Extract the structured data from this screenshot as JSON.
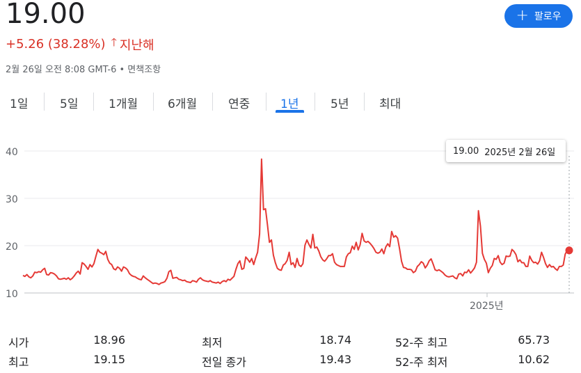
{
  "quote": {
    "price": "19.00",
    "change": "+5.26 (38.28%)",
    "change_period": "지난해",
    "timestamp": "2월 26일 오전 8:08 GMT-6 • 면책조항",
    "follow_label": "팔로우"
  },
  "colors": {
    "accent": "#1a73e8",
    "negative": "#d93025",
    "line": "#e53935"
  },
  "tabs": [
    "1일",
    "5일",
    "1개월",
    "6개월",
    "연중",
    "1년",
    "5년",
    "최대"
  ],
  "active_tab": "1년",
  "tooltip": {
    "value": "19.00",
    "date": "2025년 2월 26일"
  },
  "chart_data": {
    "type": "line",
    "y_ticks": [
      "40",
      "30",
      "20",
      "10"
    ],
    "x_tick_label": "2025년",
    "ylim": [
      10,
      40
    ],
    "x_range": [
      0,
      250
    ],
    "values": [
      13.7,
      13.5,
      13.9,
      13.4,
      13.2,
      13.6,
      14.4,
      14.3,
      14.5,
      14.4,
      14.9,
      15.2,
      13.9,
      13.8,
      14.3,
      14.2,
      14.0,
      13.6,
      13.0,
      12.9,
      13.0,
      13.1,
      12.9,
      13.2,
      12.8,
      13.1,
      13.6,
      14.2,
      14.6,
      14.0,
      16.4,
      16.1,
      15.6,
      15.0,
      16.0,
      15.5,
      16.2,
      17.8,
      19.2,
      18.6,
      18.4,
      18.1,
      18.8,
      17.1,
      16.3,
      16.0,
      15.1,
      14.9,
      15.5,
      15.2,
      14.6,
      15.5,
      15.3,
      14.9,
      14.1,
      13.7,
      13.5,
      13.4,
      13.1,
      12.9,
      12.8,
      13.6,
      13.2,
      12.9,
      12.6,
      12.3,
      12.0,
      12.1,
      12.0,
      11.8,
      12.1,
      12.2,
      12.4,
      13.1,
      14.5,
      14.8,
      13.1,
      13.2,
      13.3,
      12.9,
      12.8,
      12.6,
      12.7,
      12.4,
      12.3,
      12.2,
      12.6,
      12.5,
      12.3,
      12.9,
      13.2,
      12.8,
      12.6,
      12.5,
      12.4,
      12.6,
      12.3,
      12.2,
      12.1,
      12.3,
      12.0,
      12.4,
      12.6,
      12.4,
      12.9,
      12.7,
      13.1,
      13.5,
      15.0,
      16.2,
      16.8,
      15.0,
      15.2,
      17.6,
      17.1,
      16.5,
      17.3,
      16.0,
      17.4,
      18.6,
      22.5,
      38.3,
      27.6,
      27.8,
      24.4,
      20.7,
      21.2,
      18.0,
      16.4,
      15.2,
      14.9,
      14.8,
      15.9,
      16.2,
      16.9,
      18.6,
      16.0,
      16.4,
      15.4,
      17.3,
      15.9,
      15.6,
      16.2,
      20.1,
      21.2,
      20.3,
      19.5,
      22.4,
      19.5,
      19.7,
      18.9,
      17.7,
      17.0,
      16.7,
      17.2,
      17.9,
      17.9,
      18.3,
      16.5,
      16.0,
      15.8,
      15.6,
      15.6,
      15.6,
      17.6,
      18.3,
      18.5,
      19.9,
      19.2,
      20.7,
      19.1,
      20.2,
      22.6,
      21.0,
      20.7,
      20.9,
      20.5,
      20.0,
      19.4,
      18.6,
      18.4,
      18.6,
      19.3,
      18.3,
      19.7,
      20.4,
      19.8,
      23.0,
      21.8,
      22.1,
      21.6,
      19.3,
      16.7,
      15.4,
      15.3,
      15.0,
      15.0,
      14.9,
      14.3,
      14.6,
      15.6,
      16.0,
      16.6,
      16.3,
      15.3,
      15.9,
      16.8,
      17.2,
      16.1,
      14.9,
      14.7,
      14.9,
      14.6,
      14.3,
      13.8,
      13.5,
      13.4,
      13.5,
      13.6,
      13.2,
      13.0,
      14.0,
      14.1,
      13.6,
      14.4,
      14.3,
      14.9,
      14.2,
      14.7,
      15.3,
      16.5,
      27.4,
      24.1,
      18.4,
      17.1,
      16.3,
      14.3,
      15.2,
      15.8,
      17.3,
      17.1,
      17.9,
      16.5,
      16.0,
      16.3,
      17.8,
      17.7,
      17.8,
      19.2,
      18.8,
      18.1,
      16.6,
      17.0,
      16.4,
      16.4,
      15.6,
      15.6,
      17.8,
      16.9,
      16.4,
      16.5,
      16.1,
      16.8,
      18.6,
      17.5,
      16.2,
      15.4,
      16.0,
      15.5,
      15.6,
      15.1,
      14.8,
      15.6,
      15.6,
      15.9,
      18.2,
      19.0,
      19.0
    ]
  },
  "stats": [
    {
      "label": "시가",
      "value": "18.96"
    },
    {
      "label": "최저",
      "value": "18.74"
    },
    {
      "label": "52-주 최고",
      "value": "65.73"
    },
    {
      "label": "최고",
      "value": "19.15"
    },
    {
      "label": "전일 종가",
      "value": "19.43"
    },
    {
      "label": "52-주 최저",
      "value": "10.62"
    }
  ]
}
